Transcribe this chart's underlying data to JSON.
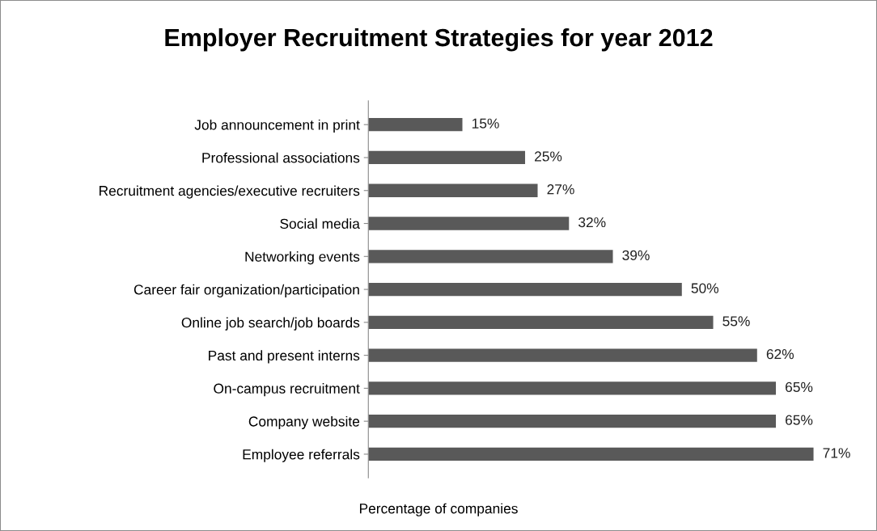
{
  "chart_data": {
    "type": "bar",
    "orientation": "horizontal",
    "title": "Employer Recruitment Strategies for year 2012",
    "xlabel": "Percentage of companies",
    "categories": [
      "Job announcement in print",
      "Professional associations",
      "Recruitment agencies/executive recruiters",
      "Social media",
      "Networking events",
      "Career fair organization/participation",
      "Online job search/job boards",
      "Past and present interns",
      "On-campus recruitment",
      "Company website",
      "Employee referrals"
    ],
    "values": [
      15,
      25,
      27,
      32,
      39,
      50,
      55,
      62,
      65,
      65,
      71
    ],
    "value_labels": [
      "15%",
      "25%",
      "27%",
      "32%",
      "39%",
      "50%",
      "55%",
      "62%",
      "65%",
      "65%",
      "71%"
    ],
    "color": "#595959",
    "tick_labels": "y"
  }
}
